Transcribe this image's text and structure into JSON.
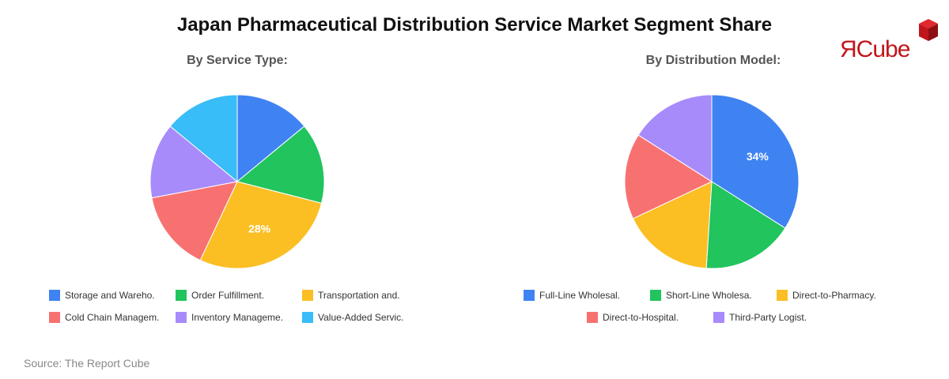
{
  "title": "Japan Pharmaceutical Distribution Service Market Segment Share",
  "source": "Source: The Report Cube",
  "logo": {
    "text": "ЯCube",
    "colors": {
      "red": "#c0161b",
      "dark": "#8e0e12"
    }
  },
  "chart_data": [
    {
      "type": "pie",
      "title": "By Service Type:",
      "categories": [
        "Storage and Wareho.",
        "Order Fulfillment.",
        "Transportation and.",
        "Cold Chain Managem.",
        "Inventory Manageme.",
        "Value-Added Servic."
      ],
      "values": [
        14,
        15,
        28,
        15,
        14,
        14
      ],
      "colors": [
        "#3f83f2",
        "#21c45d",
        "#fbbf24",
        "#f87171",
        "#a78bfa",
        "#38bdf8"
      ],
      "labels": [
        "",
        "",
        "28%",
        "",
        "",
        ""
      ],
      "legend_position": "bottom"
    },
    {
      "type": "pie",
      "title": "By Distribution Model:",
      "categories": [
        "Full-Line Wholesal.",
        "Short-Line Wholesa.",
        "Direct-to-Pharmacy.",
        "Direct-to-Hospital.",
        "Third-Party Logist."
      ],
      "values": [
        34,
        17,
        17,
        16,
        16
      ],
      "colors": [
        "#3f83f2",
        "#21c45d",
        "#fbbf24",
        "#f87171",
        "#a78bfa"
      ],
      "labels": [
        "34%",
        "",
        "",
        "",
        ""
      ],
      "legend_position": "bottom"
    }
  ]
}
